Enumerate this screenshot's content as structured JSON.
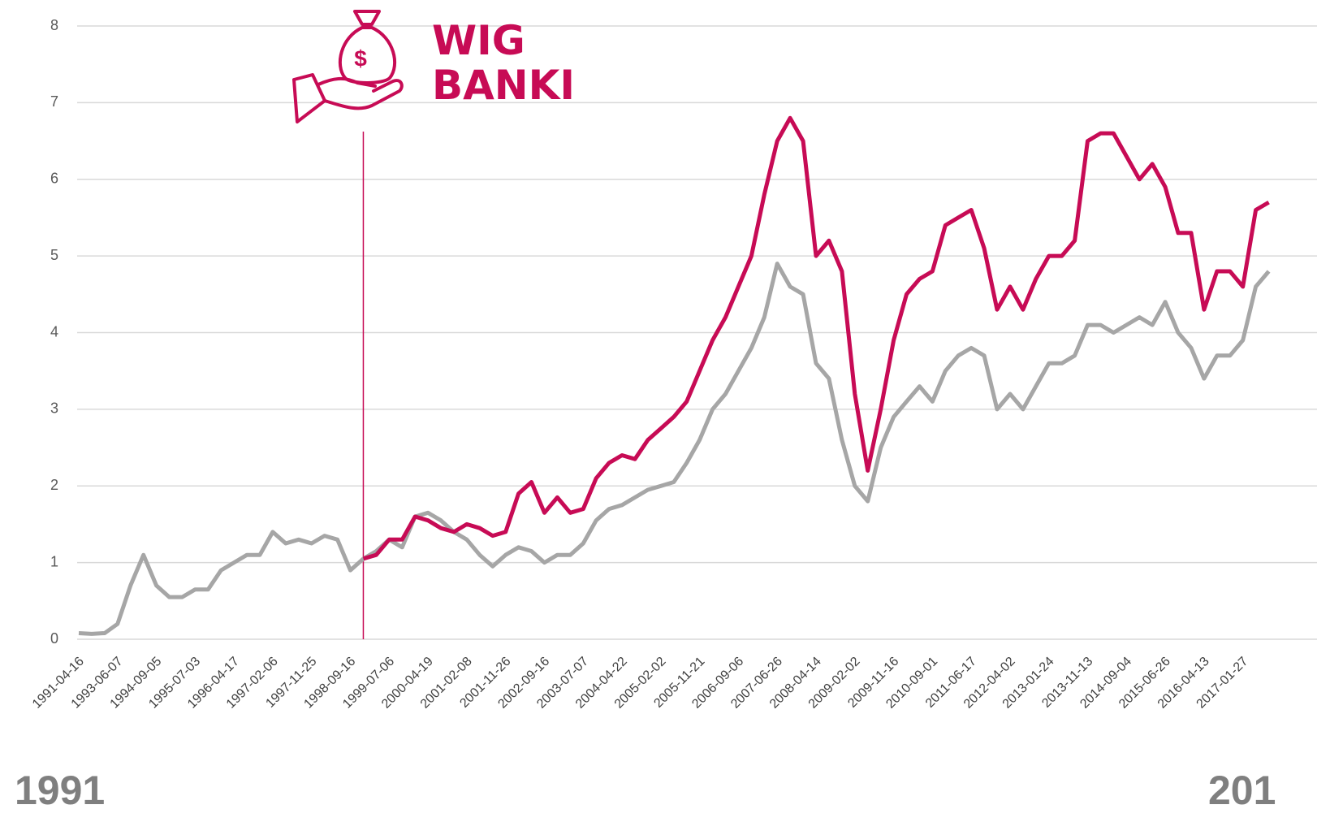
{
  "chart_data": {
    "type": "line",
    "title_lines": [
      "WIG",
      "BANKI"
    ],
    "footer": {
      "left": "1991",
      "right": "201"
    },
    "categories": [
      "1991-04-16",
      null,
      null,
      "1993-06-07",
      null,
      null,
      "1994-09-05",
      null,
      null,
      "1995-07-03",
      null,
      null,
      "1996-04-17",
      null,
      null,
      "1997-02-06",
      null,
      null,
      "1997-11-25",
      null,
      null,
      "1998-09-16",
      null,
      null,
      "1999-07-06",
      null,
      null,
      "2000-04-19",
      null,
      null,
      "2001-02-08",
      null,
      null,
      "2001-11-26",
      null,
      null,
      "2002-09-16",
      null,
      null,
      "2003-07-07",
      null,
      null,
      "2004-04-22",
      null,
      null,
      "2005-02-02",
      null,
      null,
      "2005-11-21",
      null,
      null,
      "2006-09-06",
      null,
      null,
      "2007-06-26",
      null,
      null,
      "2008-04-14",
      null,
      null,
      "2009-02-02",
      null,
      null,
      "2009-11-16",
      null,
      null,
      "2010-09-01",
      null,
      null,
      "2011-06-17",
      null,
      null,
      "2012-04-02",
      null,
      null,
      "2013-01-24",
      null,
      null,
      "2013-11-13",
      null,
      null,
      "2014-09-04",
      null,
      null,
      "2015-06-26",
      null,
      null,
      "2016-04-13",
      null,
      null,
      "2017-01-27",
      null,
      null
    ],
    "series": [
      {
        "color": "#a6a6a6",
        "values": [
          0.08,
          0.07,
          0.08,
          0.2,
          0.7,
          1.1,
          0.7,
          0.55,
          0.55,
          0.65,
          0.65,
          0.9,
          1.0,
          1.1,
          1.1,
          1.4,
          1.25,
          1.3,
          1.25,
          1.35,
          1.3,
          0.9,
          1.05,
          1.15,
          1.3,
          1.2,
          1.6,
          1.65,
          1.55,
          1.4,
          1.3,
          1.1,
          0.95,
          1.1,
          1.2,
          1.15,
          1.0,
          1.1,
          1.1,
          1.25,
          1.55,
          1.7,
          1.75,
          1.85,
          1.95,
          2.0,
          2.05,
          2.3,
          2.6,
          3.0,
          3.2,
          3.5,
          3.8,
          4.2,
          4.9,
          4.6,
          4.5,
          3.6,
          3.4,
          2.6,
          2.0,
          1.8,
          2.5,
          2.9,
          3.1,
          3.3,
          3.1,
          3.5,
          3.7,
          3.8,
          3.7,
          3.0,
          3.2,
          3.0,
          3.3,
          3.6,
          3.6,
          3.7,
          4.1,
          4.1,
          4.0,
          4.1,
          4.2,
          4.1,
          4.4,
          4.0,
          3.8,
          3.4,
          3.7,
          3.7,
          3.9,
          4.6,
          4.8
        ]
      },
      {
        "color": "#c70b55",
        "values": [
          null,
          null,
          null,
          null,
          null,
          null,
          null,
          null,
          null,
          null,
          null,
          null,
          null,
          null,
          null,
          null,
          null,
          null,
          null,
          null,
          null,
          null,
          1.05,
          1.1,
          1.3,
          1.3,
          1.6,
          1.55,
          1.45,
          1.4,
          1.5,
          1.45,
          1.35,
          1.4,
          1.9,
          2.05,
          1.65,
          1.85,
          1.65,
          1.7,
          2.1,
          2.3,
          2.4,
          2.35,
          2.6,
          2.75,
          2.9,
          3.1,
          3.5,
          3.9,
          4.2,
          4.6,
          5.0,
          5.8,
          6.5,
          6.8,
          6.5,
          5.0,
          5.2,
          4.8,
          3.2,
          2.2,
          3.0,
          3.9,
          4.5,
          4.7,
          4.8,
          5.4,
          5.5,
          5.6,
          5.1,
          4.3,
          4.6,
          4.3,
          4.7,
          5.0,
          5.0,
          5.2,
          6.5,
          6.6,
          6.6,
          6.3,
          6.0,
          6.2,
          5.9,
          5.3,
          5.3,
          4.3,
          4.8,
          4.8,
          4.6,
          5.6,
          5.7
        ]
      }
    ],
    "ylim": [
      0,
      8
    ],
    "yticks": [
      0,
      1,
      2,
      3,
      4,
      5,
      6,
      7,
      8
    ],
    "grid": true
  }
}
